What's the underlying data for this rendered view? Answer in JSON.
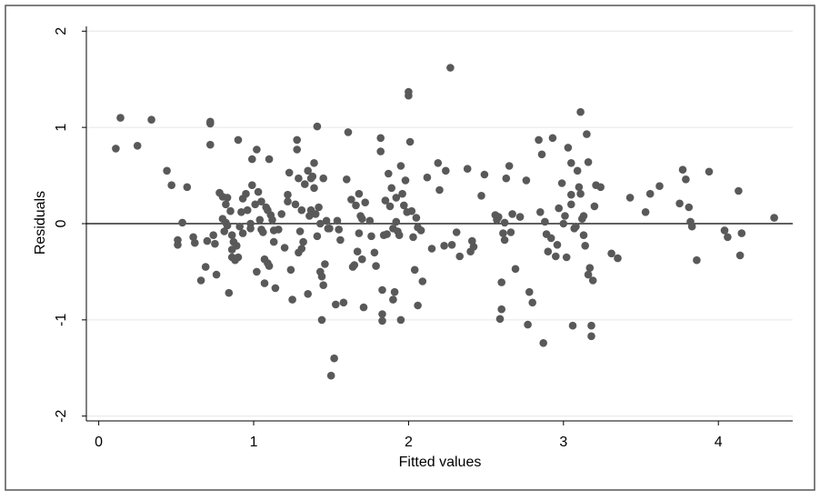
{
  "chart_data": {
    "type": "scatter",
    "title": "",
    "xlabel": "Fitted values",
    "ylabel": "Residuals",
    "xlim": [
      -0.08,
      4.48
    ],
    "ylim": [
      -2.05,
      2.05
    ],
    "x_ticks": [
      0,
      1,
      2,
      3,
      4
    ],
    "y_ticks": [
      -2,
      -1,
      0,
      1,
      2
    ],
    "x_tick_labels": [
      "0",
      "1",
      "2",
      "3",
      "4"
    ],
    "y_tick_labels": [
      "-2",
      "-1",
      "0",
      "1",
      "2"
    ],
    "grid": true,
    "reference_line_y": 0,
    "colors": {
      "marker": "#595959",
      "grid": "#e6e6e6",
      "border": "#000000",
      "frame": "#555555"
    },
    "points": [
      [
        0.11,
        0.78
      ],
      [
        0.14,
        1.1
      ],
      [
        0.25,
        0.81
      ],
      [
        0.34,
        1.08
      ],
      [
        0.44,
        0.55
      ],
      [
        0.47,
        0.4
      ],
      [
        0.51,
        -0.17
      ],
      [
        0.51,
        -0.22
      ],
      [
        0.54,
        0.01
      ],
      [
        0.57,
        0.38
      ],
      [
        0.61,
        -0.14
      ],
      [
        0.62,
        -0.2
      ],
      [
        0.66,
        -0.59
      ],
      [
        0.69,
        -0.45
      ],
      [
        0.7,
        -0.18
      ],
      [
        0.72,
        1.06
      ],
      [
        0.72,
        1.04
      ],
      [
        0.72,
        0.82
      ],
      [
        0.74,
        -0.12
      ],
      [
        0.75,
        -0.21
      ],
      [
        0.76,
        -0.53
      ],
      [
        0.78,
        0.32
      ],
      [
        0.8,
        0.28
      ],
      [
        0.8,
        0.05
      ],
      [
        0.81,
        -0.08
      ],
      [
        0.82,
        0.2
      ],
      [
        0.82,
        0.01
      ],
      [
        0.83,
        0.27
      ],
      [
        0.83,
        -0.02
      ],
      [
        0.84,
        -0.72
      ],
      [
        0.85,
        0.13
      ],
      [
        0.86,
        -0.12
      ],
      [
        0.86,
        -0.27
      ],
      [
        0.86,
        -0.35
      ],
      [
        0.87,
        -0.19
      ],
      [
        0.88,
        -0.38
      ],
      [
        0.89,
        -0.23
      ],
      [
        0.9,
        0.87
      ],
      [
        0.9,
        -0.35
      ],
      [
        0.91,
        -0.03
      ],
      [
        0.92,
        0.12
      ],
      [
        0.93,
        0.26
      ],
      [
        0.93,
        -0.1
      ],
      [
        0.95,
        0.31
      ],
      [
        0.96,
        0.14
      ],
      [
        0.98,
        0.0
      ],
      [
        0.98,
        -0.05
      ],
      [
        0.99,
        0.67
      ],
      [
        0.99,
        0.4
      ],
      [
        1.01,
        0.2
      ],
      [
        1.02,
        0.77
      ],
      [
        1.02,
        -0.5
      ],
      [
        1.03,
        0.33
      ],
      [
        1.04,
        0.04
      ],
      [
        1.05,
        0.23
      ],
      [
        1.05,
        -0.06
      ],
      [
        1.06,
        -0.09
      ],
      [
        1.07,
        -0.37
      ],
      [
        1.07,
        -0.62
      ],
      [
        1.08,
        0.17
      ],
      [
        1.09,
        0.14
      ],
      [
        1.09,
        -0.41
      ],
      [
        1.1,
        0.67
      ],
      [
        1.1,
        -0.44
      ],
      [
        1.11,
        0.09
      ],
      [
        1.12,
        0.04
      ],
      [
        1.13,
        -0.07
      ],
      [
        1.13,
        -0.19
      ],
      [
        1.14,
        -0.67
      ],
      [
        1.16,
        -0.06
      ],
      [
        1.18,
        0.1
      ],
      [
        1.2,
        -0.25
      ],
      [
        1.22,
        0.3
      ],
      [
        1.22,
        0.23
      ],
      [
        1.23,
        0.53
      ],
      [
        1.24,
        -0.48
      ],
      [
        1.25,
        -0.79
      ],
      [
        1.27,
        0.2
      ],
      [
        1.28,
        0.77
      ],
      [
        1.28,
        0.87
      ],
      [
        1.29,
        0.47
      ],
      [
        1.29,
        -0.3
      ],
      [
        1.3,
        -0.08
      ],
      [
        1.31,
        0.14
      ],
      [
        1.31,
        -0.26
      ],
      [
        1.32,
        -0.19
      ],
      [
        1.33,
        0.41
      ],
      [
        1.35,
        0.55
      ],
      [
        1.35,
        -0.73
      ],
      [
        1.36,
        0.08
      ],
      [
        1.37,
        0.47
      ],
      [
        1.37,
        0.14
      ],
      [
        1.38,
        0.49
      ],
      [
        1.39,
        0.63
      ],
      [
        1.39,
        0.37
      ],
      [
        1.4,
        0.1
      ],
      [
        1.41,
        -0.13
      ],
      [
        1.41,
        1.01
      ],
      [
        1.42,
        0.17
      ],
      [
        1.43,
        0.0
      ],
      [
        1.43,
        -0.5
      ],
      [
        1.44,
        -0.55
      ],
      [
        1.44,
        -1.0
      ],
      [
        1.45,
        0.47
      ],
      [
        1.45,
        -0.64
      ],
      [
        1.46,
        -0.42
      ],
      [
        1.47,
        0.03
      ],
      [
        1.48,
        -0.05
      ],
      [
        1.49,
        -0.05
      ],
      [
        1.5,
        -1.58
      ],
      [
        1.52,
        -1.4
      ],
      [
        1.53,
        -0.84
      ],
      [
        1.54,
        0.03
      ],
      [
        1.55,
        -0.06
      ],
      [
        1.56,
        -0.17
      ],
      [
        1.58,
        -0.82
      ],
      [
        1.6,
        0.46
      ],
      [
        1.61,
        0.95
      ],
      [
        1.63,
        0.25
      ],
      [
        1.64,
        -0.45
      ],
      [
        1.65,
        -0.43
      ],
      [
        1.66,
        0.19
      ],
      [
        1.67,
        -0.29
      ],
      [
        1.68,
        0.31
      ],
      [
        1.68,
        -0.1
      ],
      [
        1.69,
        0.08
      ],
      [
        1.7,
        0.05
      ],
      [
        1.7,
        -0.37
      ],
      [
        1.71,
        -0.87
      ],
      [
        1.72,
        0.22
      ],
      [
        1.75,
        0.03
      ],
      [
        1.76,
        -0.13
      ],
      [
        1.78,
        -0.3
      ],
      [
        1.79,
        -0.44
      ],
      [
        1.82,
        0.89
      ],
      [
        1.82,
        0.75
      ],
      [
        1.83,
        -0.69
      ],
      [
        1.83,
        -0.94
      ],
      [
        1.83,
        -1.01
      ],
      [
        1.84,
        -0.12
      ],
      [
        1.85,
        0.24
      ],
      [
        1.86,
        -0.11
      ],
      [
        1.87,
        0.52
      ],
      [
        1.88,
        0.18
      ],
      [
        1.89,
        0.37
      ],
      [
        1.9,
        -0.05
      ],
      [
        1.9,
        -0.79
      ],
      [
        1.91,
        -0.71
      ],
      [
        1.92,
        0.27
      ],
      [
        1.92,
        0.02
      ],
      [
        1.93,
        -0.08
      ],
      [
        1.94,
        -0.12
      ],
      [
        1.95,
        -1.0
      ],
      [
        1.95,
        0.6
      ],
      [
        1.96,
        0.31
      ],
      [
        1.97,
        0.19
      ],
      [
        1.98,
        0.45
      ],
      [
        1.99,
        0.12
      ],
      [
        2.0,
        1.37
      ],
      [
        2.0,
        1.33
      ],
      [
        2.01,
        0.85
      ],
      [
        2.02,
        0.13
      ],
      [
        2.03,
        -0.14
      ],
      [
        2.04,
        -0.48
      ],
      [
        2.05,
        0.06
      ],
      [
        2.06,
        -0.04
      ],
      [
        2.06,
        -0.85
      ],
      [
        2.08,
        -0.07
      ],
      [
        2.09,
        -0.6
      ],
      [
        2.12,
        0.48
      ],
      [
        2.15,
        -0.26
      ],
      [
        2.19,
        0.63
      ],
      [
        2.2,
        0.35
      ],
      [
        2.23,
        -0.23
      ],
      [
        2.24,
        0.55
      ],
      [
        2.27,
        1.62
      ],
      [
        2.28,
        -0.22
      ],
      [
        2.31,
        -0.09
      ],
      [
        2.33,
        -0.34
      ],
      [
        2.38,
        0.57
      ],
      [
        2.4,
        -0.29
      ],
      [
        2.41,
        -0.18
      ],
      [
        2.42,
        -0.24
      ],
      [
        2.47,
        0.29
      ],
      [
        2.49,
        0.51
      ],
      [
        2.56,
        0.09
      ],
      [
        2.57,
        0.04
      ],
      [
        2.58,
        0.07
      ],
      [
        2.59,
        -0.99
      ],
      [
        2.6,
        -0.89
      ],
      [
        2.6,
        -0.61
      ],
      [
        2.61,
        -0.1
      ],
      [
        2.62,
        -0.17
      ],
      [
        2.62,
        0.01
      ],
      [
        2.63,
        0.47
      ],
      [
        2.65,
        0.6
      ],
      [
        2.66,
        -0.09
      ],
      [
        2.67,
        0.1
      ],
      [
        2.69,
        -0.47
      ],
      [
        2.72,
        0.07
      ],
      [
        2.76,
        0.45
      ],
      [
        2.77,
        -1.05
      ],
      [
        2.78,
        -0.71
      ],
      [
        2.8,
        -0.82
      ],
      [
        2.84,
        0.87
      ],
      [
        2.85,
        0.12
      ],
      [
        2.86,
        0.72
      ],
      [
        2.87,
        -1.24
      ],
      [
        2.88,
        0.02
      ],
      [
        2.89,
        -0.11
      ],
      [
        2.9,
        -0.29
      ],
      [
        2.92,
        -0.15
      ],
      [
        2.93,
        0.89
      ],
      [
        2.95,
        -0.34
      ],
      [
        2.96,
        -0.22
      ],
      [
        2.97,
        0.16
      ],
      [
        2.99,
        0.42
      ],
      [
        3.0,
        0.0
      ],
      [
        3.01,
        0.08
      ],
      [
        3.02,
        -0.35
      ],
      [
        3.03,
        0.79
      ],
      [
        3.05,
        0.63
      ],
      [
        3.05,
        0.3
      ],
      [
        3.05,
        0.2
      ],
      [
        3.06,
        -1.06
      ],
      [
        3.07,
        -0.05
      ],
      [
        3.08,
        -0.03
      ],
      [
        3.09,
        0.55
      ],
      [
        3.1,
        0.38
      ],
      [
        3.11,
        1.16
      ],
      [
        3.11,
        0.31
      ],
      [
        3.12,
        0.05
      ],
      [
        3.13,
        0.08
      ],
      [
        3.13,
        -0.12
      ],
      [
        3.14,
        -0.23
      ],
      [
        3.15,
        0.93
      ],
      [
        3.16,
        -0.53
      ],
      [
        3.16,
        0.64
      ],
      [
        3.17,
        -0.46
      ],
      [
        3.18,
        -1.06
      ],
      [
        3.18,
        -1.17
      ],
      [
        3.19,
        -0.59
      ],
      [
        3.2,
        0.18
      ],
      [
        3.21,
        0.4
      ],
      [
        3.24,
        0.38
      ],
      [
        3.31,
        -0.31
      ],
      [
        3.35,
        -0.36
      ],
      [
        3.43,
        0.27
      ],
      [
        3.53,
        0.12
      ],
      [
        3.56,
        0.31
      ],
      [
        3.62,
        0.39
      ],
      [
        3.75,
        0.21
      ],
      [
        3.77,
        0.56
      ],
      [
        3.79,
        0.46
      ],
      [
        3.81,
        0.17
      ],
      [
        3.82,
        0.02
      ],
      [
        3.83,
        -0.03
      ],
      [
        3.86,
        -0.38
      ],
      [
        3.94,
        0.54
      ],
      [
        4.04,
        -0.07
      ],
      [
        4.06,
        -0.14
      ],
      [
        4.13,
        0.34
      ],
      [
        4.14,
        -0.33
      ],
      [
        4.15,
        -0.1
      ],
      [
        4.36,
        0.06
      ]
    ]
  }
}
